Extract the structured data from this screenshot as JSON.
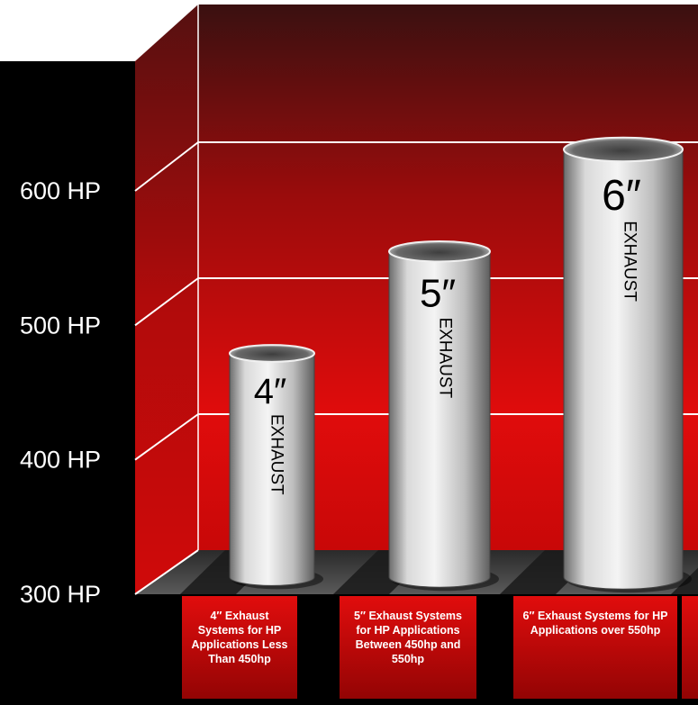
{
  "chart_data": {
    "type": "bar",
    "y_unit": "HP",
    "ylim": [
      300,
      600
    ],
    "y_ticks": [
      {
        "value": 300,
        "label": "300 HP"
      },
      {
        "value": 400,
        "label": "400 HP"
      },
      {
        "value": 500,
        "label": "500 HP"
      },
      {
        "value": 600,
        "label": "600 HP"
      }
    ],
    "grid": true,
    "bars": [
      {
        "size_label": "4″",
        "exhaust_label": "EXHAUST",
        "value": 450,
        "caption": "4″ Exhaust Systems for HP Applications Less Than 450hp"
      },
      {
        "size_label": "5″",
        "exhaust_label": "EXHAUST",
        "value": 525,
        "caption": "5″ Exhaust Systems for HP Applications Between 450hp and 550hp"
      },
      {
        "size_label": "6″",
        "exhaust_label": "EXHAUST",
        "value": 600,
        "caption": "6″ Exhaust Systems for HP Applications over 550hp"
      }
    ],
    "colors": {
      "wall": "#c40a0a",
      "panel_dark": "#000000",
      "pipe": "#c8c8c8",
      "caption": "#d40c0c"
    }
  }
}
